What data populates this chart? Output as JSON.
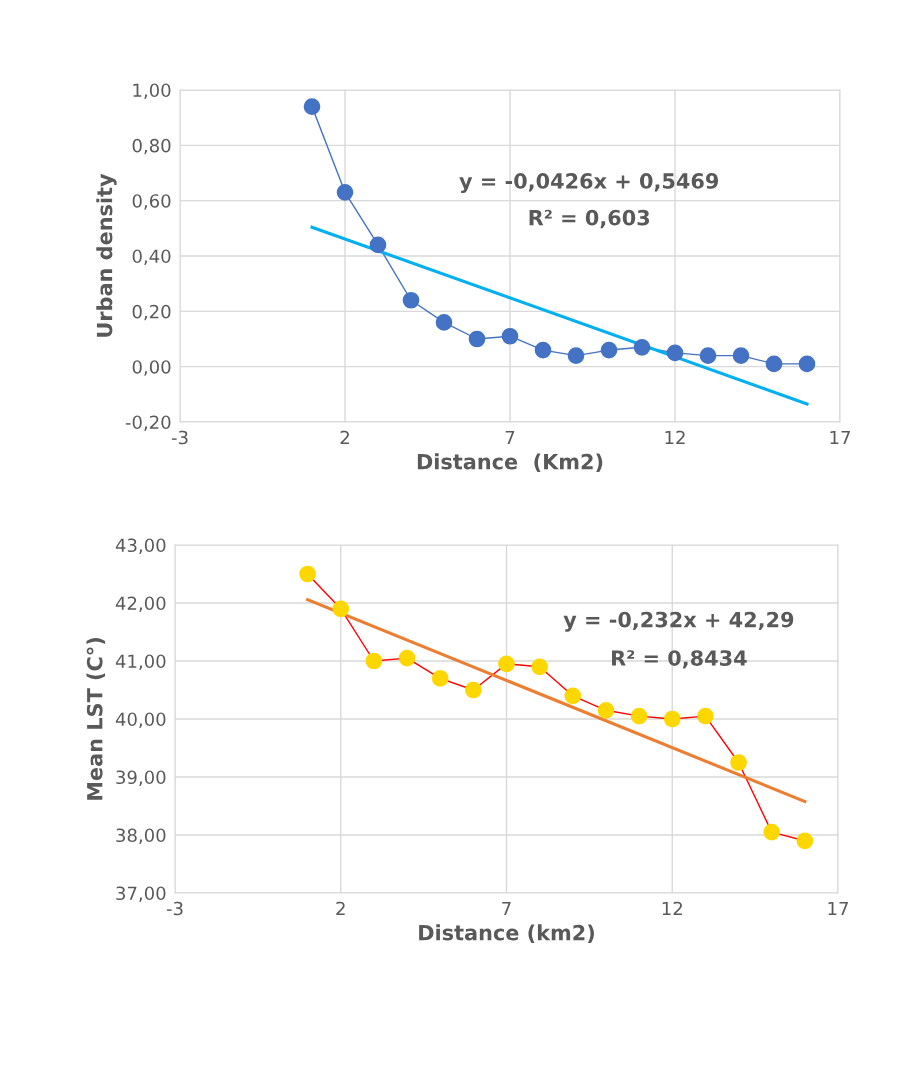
{
  "chart_data": [
    {
      "type": "line",
      "ylabel": "Urban density",
      "xlabel": "Distance  (Km2)",
      "annotations": [
        "y = -0,0426x + 0,5469",
        "R² = 0,603"
      ],
      "xlim": [
        -3,
        17
      ],
      "xticks": [
        -3,
        2,
        7,
        12,
        17
      ],
      "ylim": [
        -0.2,
        1.0
      ],
      "yticks": [
        {
          "value": -0.2,
          "label": "-0,20"
        },
        {
          "value": 0,
          "label": "0,00"
        },
        {
          "value": 0.2,
          "label": "0,20"
        },
        {
          "value": 0.4,
          "label": "0,40"
        },
        {
          "value": 0.6,
          "label": "0,60"
        },
        {
          "value": 0.8,
          "label": "0,80"
        },
        {
          "value": 1.0,
          "label": "1,00"
        }
      ],
      "grid": true,
      "legend": false,
      "series": [
        {
          "color": "#4472c4",
          "colors": [
            "#4472c4",
            "#4472c4",
            "#4472c4",
            "#4472c4",
            "#4472c4",
            "#4472c4",
            "#4472c4",
            "#4472c4",
            "#4472c4",
            "#4472c4",
            "#4472c4",
            "#4472c4",
            "#4472c4",
            "#4472c4",
            "#4472c4",
            "#4472c4"
          ],
          "marker": "circle",
          "x": [
            1,
            2,
            3,
            4,
            5,
            6,
            7,
            8,
            9,
            10,
            11,
            12,
            13,
            14,
            15,
            16
          ],
          "values": [
            0.94,
            0.63,
            0.44,
            0.24,
            0.16,
            0.1,
            0.11,
            0.06,
            0.04,
            0.06,
            0.07,
            0.05,
            0.04,
            0.04,
            0.01,
            0.01
          ]
        },
        {
          "color": "#00b0f0",
          "marker": "none",
          "x": [
            1,
            16
          ],
          "values": [
            0.504,
            -0.135
          ]
        }
      ]
    },
    {
      "type": "line",
      "ylabel": "Mean LST (C°)",
      "xlabel": "Distance (km2)",
      "annotations": [
        "y = -0,232x + 42,29",
        "R² = 0,8434"
      ],
      "xlim": [
        -3,
        17
      ],
      "xticks": [
        -3,
        2,
        7,
        12,
        17
      ],
      "ylim": [
        37,
        43
      ],
      "yticks": [
        {
          "value": 37,
          "label": "37,00"
        },
        {
          "value": 38,
          "label": "38,00"
        },
        {
          "value": 39,
          "label": "39,00"
        },
        {
          "value": 40,
          "label": "40,00"
        },
        {
          "value": 41,
          "label": "41,00"
        },
        {
          "value": 42,
          "label": "42,00"
        },
        {
          "value": 43,
          "label": "43,00"
        }
      ],
      "grid": true,
      "legend": false,
      "series": [
        {
          "color": "#ff0000",
          "colors": [
            "#ffd700",
            "#ffd700",
            "#ffd700",
            "#ffd700",
            "#ffd700",
            "#ffd700",
            "#ffd700",
            "#ffd700",
            "#ffd700",
            "#ffd700",
            "#ffd700",
            "#ffd700",
            "#ffd700",
            "#ffd700",
            "#ffd700",
            "#ffd700"
          ],
          "marker": "circle",
          "x": [
            1,
            2,
            3,
            4,
            5,
            6,
            7,
            8,
            9,
            10,
            11,
            12,
            13,
            14,
            15,
            16
          ],
          "values": [
            42.5,
            41.9,
            41.0,
            41.05,
            40.7,
            40.5,
            40.95,
            40.9,
            40.4,
            40.15,
            40.05,
            40.0,
            40.05,
            39.25,
            38.05,
            37.9
          ]
        },
        {
          "color": "#ed7d31",
          "marker": "none",
          "x": [
            1,
            16
          ],
          "values": [
            42.058,
            38.578
          ]
        }
      ]
    }
  ]
}
